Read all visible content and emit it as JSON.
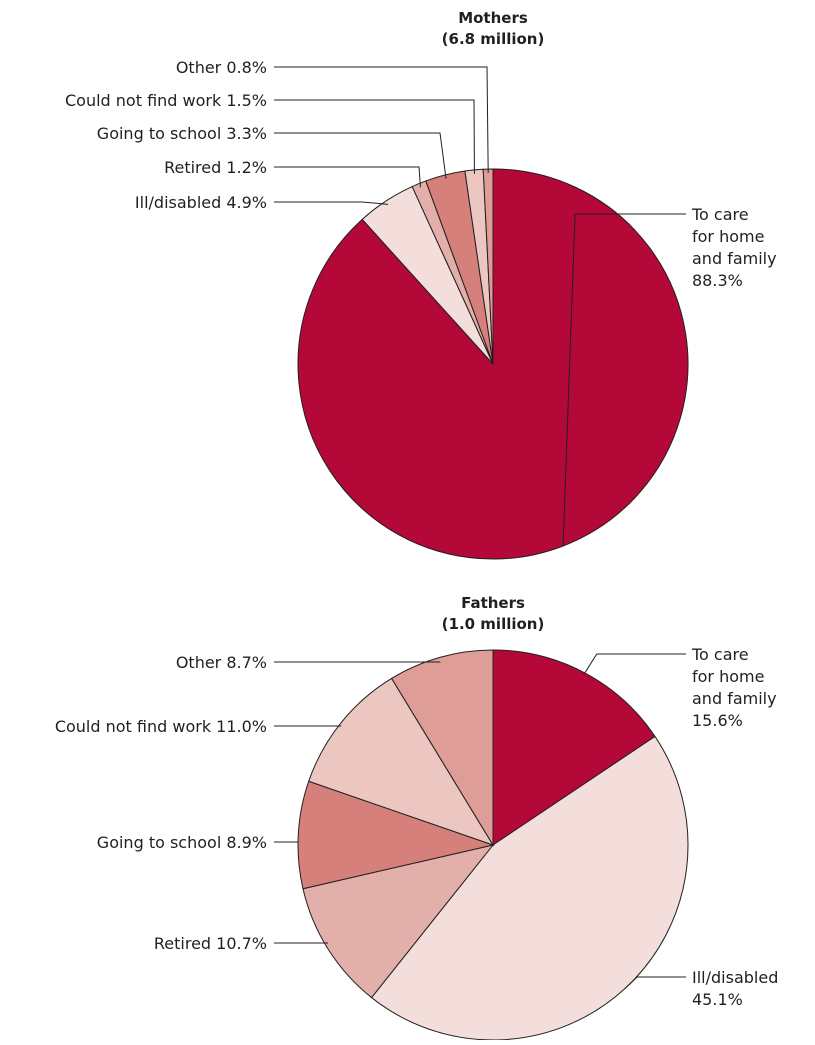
{
  "chart_data": [
    {
      "type": "pie",
      "title": "Mothers",
      "subtitle": "(6.8 million)",
      "series": [
        {
          "name": "To care for home and family",
          "value": 88.3,
          "label_lines": [
            "To care",
            "for home",
            "and family",
            "88.3%"
          ],
          "color": "#b30838"
        },
        {
          "name": "Ill/disabled",
          "value": 4.9,
          "label_lines": [
            "Ill/disabled 4.9%"
          ],
          "color": "#f4dedb"
        },
        {
          "name": "Retired",
          "value": 1.2,
          "label_lines": [
            "Retired 1.2%"
          ],
          "color": "#e3afab"
        },
        {
          "name": "Going to school",
          "value": 3.3,
          "label_lines": [
            "Going to school 3.3%"
          ],
          "color": "#d6807c"
        },
        {
          "name": "Could not find work",
          "value": 1.5,
          "label_lines": [
            "Could not find work 1.5%"
          ],
          "color": "#ecc6c1"
        },
        {
          "name": "Other",
          "value": 0.8,
          "label_lines": [
            "Other 0.8%"
          ],
          "color": "#df9d98"
        }
      ]
    },
    {
      "type": "pie",
      "title": "Fathers",
      "subtitle": "(1.0 million)",
      "series": [
        {
          "name": "To care for home and family",
          "value": 15.6,
          "label_lines": [
            "To care",
            "for home",
            "and family",
            "15.6%"
          ],
          "color": "#b30838"
        },
        {
          "name": "Ill/disabled",
          "value": 45.1,
          "label_lines": [
            "Ill/disabled",
            "45.1%"
          ],
          "color": "#f4dedb"
        },
        {
          "name": "Retired",
          "value": 10.7,
          "label_lines": [
            "Retired 10.7%"
          ],
          "color": "#e3afab"
        },
        {
          "name": "Going to school",
          "value": 8.9,
          "label_lines": [
            "Going to school 8.9%"
          ],
          "color": "#d6807c"
        },
        {
          "name": "Could not find work",
          "value": 11.0,
          "label_lines": [
            "Could not find work 11.0%"
          ],
          "color": "#ecc6c1"
        },
        {
          "name": "Other",
          "value": 8.7,
          "label_lines": [
            "Other 8.7%"
          ],
          "color": "#df9d98"
        }
      ]
    }
  ]
}
